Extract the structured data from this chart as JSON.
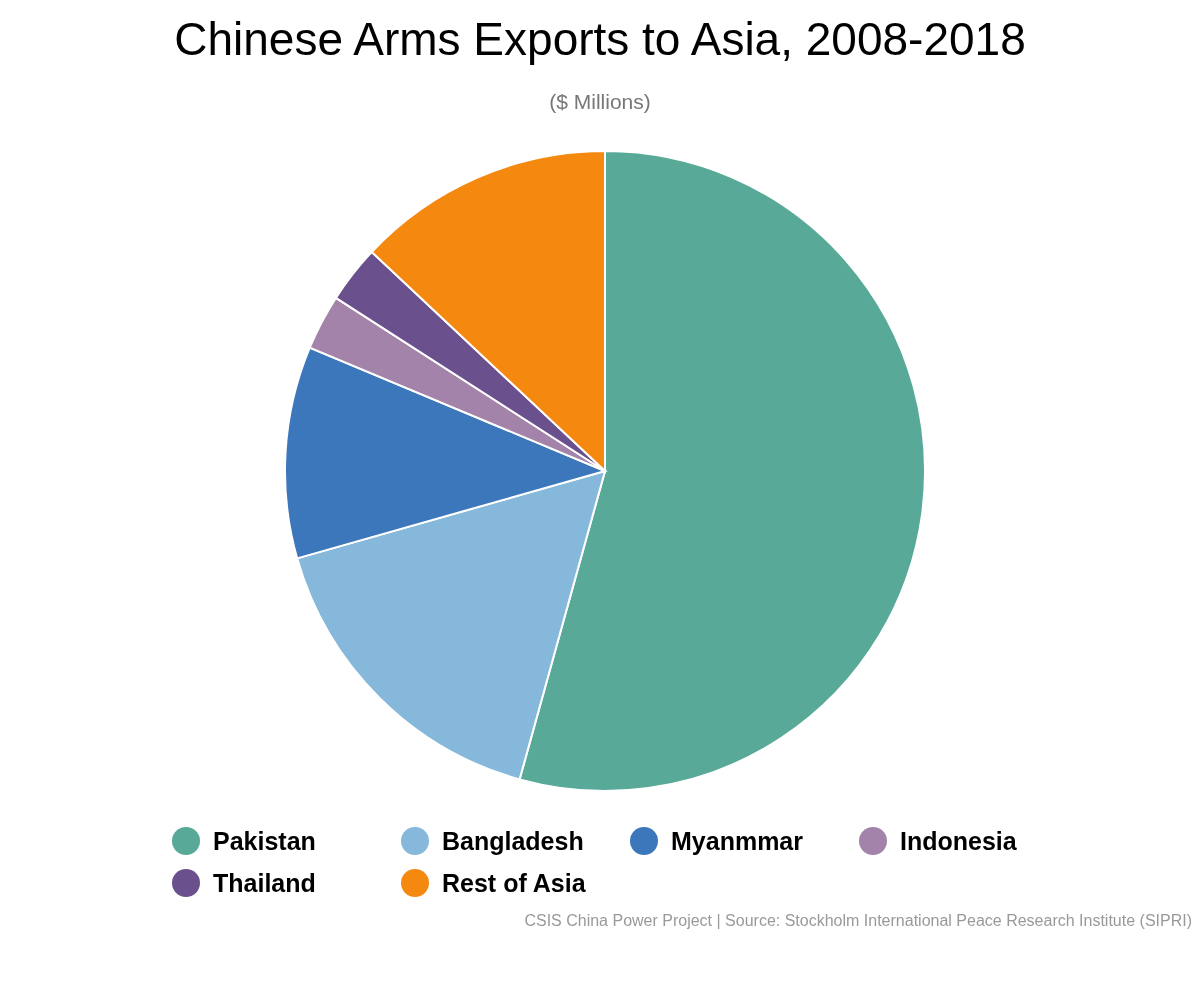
{
  "chart_data": {
    "type": "pie",
    "title": "Chinese Arms Exports to Asia, 2008-2018",
    "subtitle": "($ Millions)",
    "categories": [
      "Pakistan",
      "Bangladesh",
      "Myanmmar",
      "Indonesia",
      "Thailand",
      "Rest of Asia"
    ],
    "values": [
      54.3,
      16.3,
      10.7,
      2.8,
      2.9,
      13.0
    ],
    "colors": [
      "#58a997",
      "#85b8da",
      "#3c76bb",
      "#a383a9",
      "#6a518d",
      "#f5880f"
    ],
    "legend": "bottom",
    "annotations": [
      "CSIS China Power Project | Source: Stockholm International Peace Research Institute (SIPRI)"
    ]
  }
}
